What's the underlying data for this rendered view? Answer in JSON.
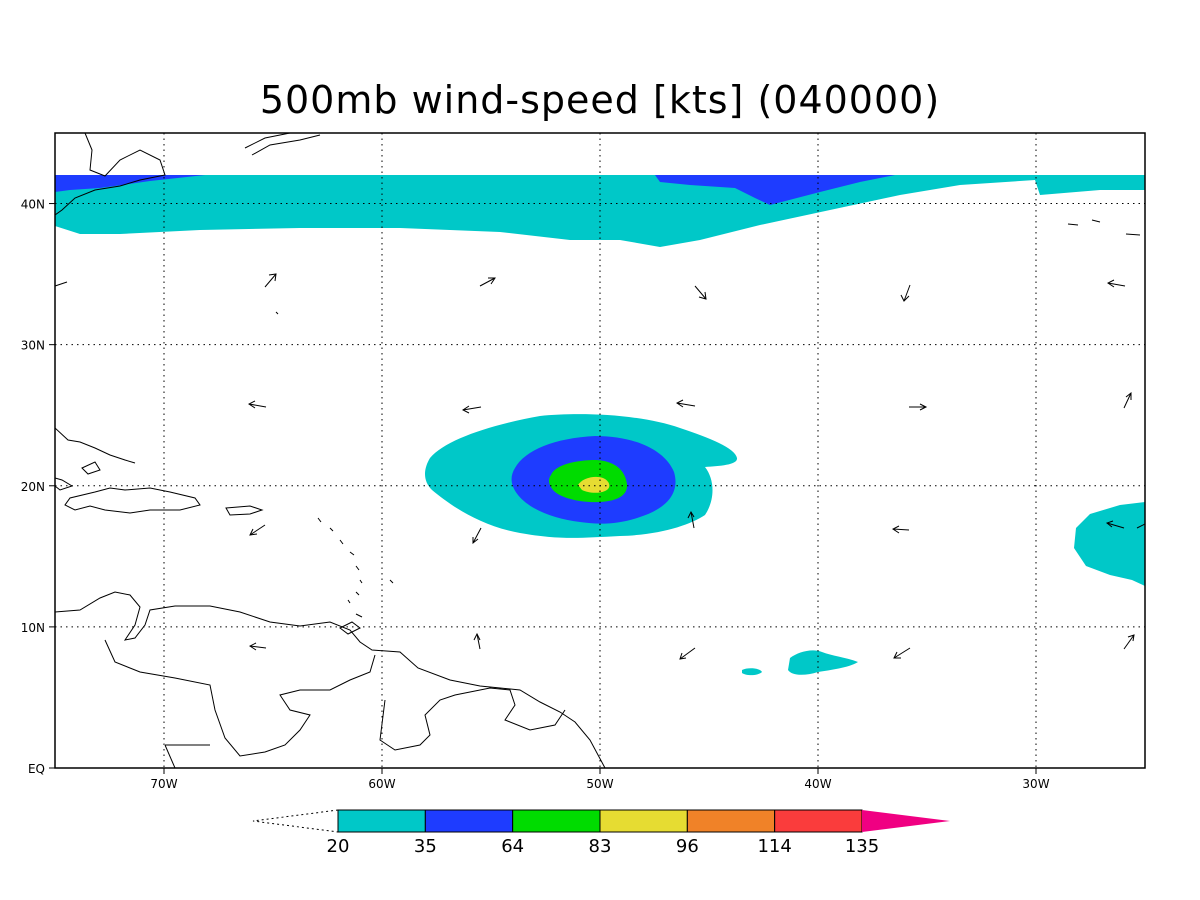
{
  "title": "500mb wind-speed [kts] (040000)",
  "map": {
    "variable": "500mb wind-speed",
    "units": "kts",
    "lon_range": [
      -75,
      -25
    ],
    "lat_range": [
      0,
      45
    ],
    "lon_ticks": [
      {
        "lon": -70,
        "label": "70W"
      },
      {
        "lon": -60,
        "label": "60W"
      },
      {
        "lon": -50,
        "label": "50W"
      },
      {
        "lon": -40,
        "label": "40W"
      },
      {
        "lon": -30,
        "label": "30W"
      }
    ],
    "lat_ticks": [
      {
        "lat": 0,
        "label": "EQ"
      },
      {
        "lat": 10,
        "label": "10N"
      },
      {
        "lat": 20,
        "label": "20N"
      },
      {
        "lat": 30,
        "label": "30N"
      },
      {
        "lat": 40,
        "label": "40N"
      }
    ],
    "grid": true,
    "storm_center": {
      "lon": -50.2,
      "lat": 19.8
    }
  },
  "colorbar": {
    "levels": [
      "20",
      "35",
      "64",
      "83",
      "96",
      "114",
      "135"
    ],
    "colors": [
      "#00c8c8",
      "#1e3cff",
      "#00dc00",
      "#e6dc32",
      "#f08228",
      "#fa3c3c",
      "#f00082"
    ]
  }
}
